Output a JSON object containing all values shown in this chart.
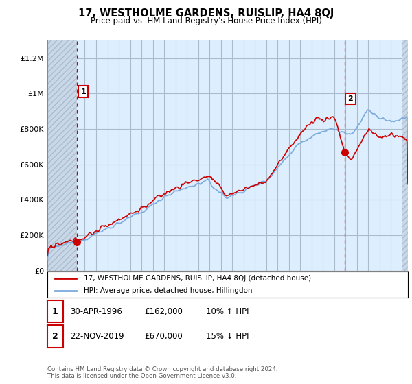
{
  "title": "17, WESTHOLME GARDENS, RUISLIP, HA4 8QJ",
  "subtitle": "Price paid vs. HM Land Registry's House Price Index (HPI)",
  "ylabel_ticks": [
    "£0",
    "£200K",
    "£400K",
    "£600K",
    "£800K",
    "£1M",
    "£1.2M"
  ],
  "ytick_values": [
    0,
    200000,
    400000,
    600000,
    800000,
    1000000,
    1200000
  ],
  "ylim": [
    0,
    1300000
  ],
  "xlim_start": 1993.7,
  "xlim_end": 2025.5,
  "point1_x": 1996.33,
  "point1_y": 162000,
  "point1_label": "1",
  "point2_x": 2019.9,
  "point2_y": 670000,
  "point2_label": "2",
  "legend_line1": "17, WESTHOLME GARDENS, RUISLIP, HA4 8QJ (detached house)",
  "legend_line2": "HPI: Average price, detached house, Hillingdon",
  "table_row1": [
    "1",
    "30-APR-1996",
    "£162,000",
    "10% ↑ HPI"
  ],
  "table_row2": [
    "2",
    "22-NOV-2019",
    "£670,000",
    "15% ↓ HPI"
  ],
  "footer": "Contains HM Land Registry data © Crown copyright and database right 2024.\nThis data is licensed under the Open Government Licence v3.0.",
  "line_color_red": "#cc0000",
  "line_color_blue": "#7aaadd",
  "background_color": "#ffffff",
  "plot_bg_color": "#ddeeff",
  "hatch_color": "#bbccdd",
  "grid_color": "#aabbcc",
  "dashed_color": "#cc0000"
}
